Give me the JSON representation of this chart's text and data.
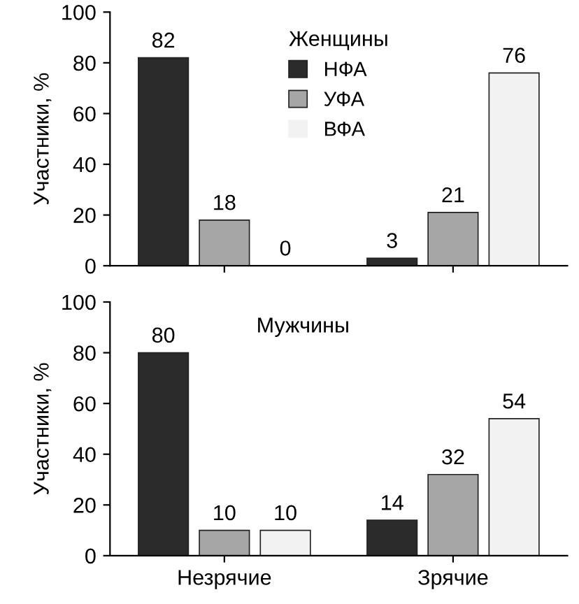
{
  "chart_data": [
    {
      "type": "bar",
      "categories": [
        null,
        null
      ],
      "ylabel": "Участники, %",
      "legend_title": "Женщины",
      "legend": "top",
      "tick_labels": "y",
      "data_labels": true,
      "ylim": [
        0,
        100
      ],
      "yticks": [
        0,
        20,
        40,
        60,
        80,
        100
      ],
      "grid": false,
      "series": [
        {
          "name": "НФА",
          "color": "#2b2b2b",
          "values": [
            82,
            3
          ]
        },
        {
          "name": "УФА",
          "color": "#a6a6a6",
          "values": [
            18,
            21
          ]
        },
        {
          "name": "ВФА",
          "color": "#f2f2f2",
          "values": [
            0,
            76
          ]
        }
      ]
    },
    {
      "type": "bar",
      "categories": [
        "Незрячие",
        "Зрячие"
      ],
      "ylabel": "Участники, %",
      "annotations": [
        "Мужчины"
      ],
      "data_labels": true,
      "ylim": [
        0,
        100
      ],
      "yticks": [
        0,
        20,
        40,
        60,
        80,
        100
      ],
      "grid": false,
      "series": [
        {
          "color": "#2b2b2b",
          "values": [
            80,
            14
          ]
        },
        {
          "color": "#a6a6a6",
          "values": [
            10,
            32
          ]
        },
        {
          "color": "#f2f2f2",
          "values": [
            10,
            54
          ]
        }
      ]
    }
  ]
}
